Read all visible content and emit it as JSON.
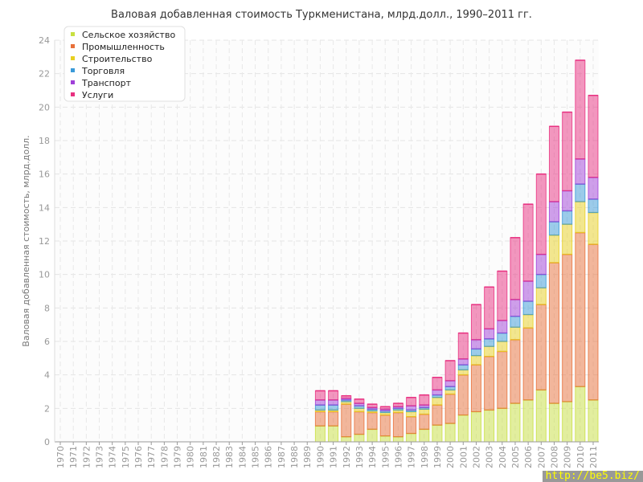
{
  "chart_data": {
    "type": "bar",
    "stacked": true,
    "title": "Валовая добавленная стоимость Туркменистана, млрд.долл., 1990–2011 гг.",
    "xlabel": "",
    "ylabel": "Валовая добавленная стоимость, млрд.долл.",
    "ylim": [
      0,
      24
    ],
    "yticks": [
      0,
      2,
      4,
      6,
      8,
      10,
      12,
      14,
      16,
      18,
      20,
      22,
      24
    ],
    "grid": true,
    "legend_position": "top-left",
    "categories": [
      "1970",
      "1971",
      "1972",
      "1973",
      "1974",
      "1975",
      "1976",
      "1977",
      "1978",
      "1979",
      "1980",
      "1981",
      "1982",
      "1983",
      "1984",
      "1985",
      "1986",
      "1987",
      "1988",
      "1989",
      "1990",
      "1991",
      "1992",
      "1993",
      "1994",
      "1995",
      "1996",
      "1997",
      "1998",
      "1999",
      "2000",
      "2001",
      "2002",
      "2003",
      "2004",
      "2005",
      "2006",
      "2007",
      "2008",
      "2009",
      "2010",
      "2011"
    ],
    "series": [
      {
        "name": "Сельское хозяйство",
        "color": "#c8e040",
        "values": [
          null,
          null,
          null,
          null,
          null,
          null,
          null,
          null,
          null,
          null,
          null,
          null,
          null,
          null,
          null,
          null,
          null,
          null,
          null,
          null,
          0.95,
          0.95,
          0.3,
          0.45,
          0.75,
          0.35,
          0.3,
          0.5,
          0.75,
          1.0,
          1.1,
          1.6,
          1.8,
          1.9,
          2.0,
          2.3,
          2.5,
          3.1,
          2.3,
          2.4,
          3.3,
          2.5
        ]
      },
      {
        "name": "Промышленность",
        "color": "#e8703a",
        "values": [
          null,
          null,
          null,
          null,
          null,
          null,
          null,
          null,
          null,
          null,
          null,
          null,
          null,
          null,
          null,
          null,
          null,
          null,
          null,
          null,
          0.85,
          0.85,
          1.95,
          1.35,
          1.0,
          1.25,
          1.45,
          1.0,
          0.9,
          1.2,
          1.75,
          2.4,
          2.8,
          3.2,
          3.4,
          3.8,
          4.3,
          5.1,
          8.4,
          8.8,
          9.2,
          9.3
        ]
      },
      {
        "name": "Строительство",
        "color": "#e8d020",
        "values": [
          null,
          null,
          null,
          null,
          null,
          null,
          null,
          null,
          null,
          null,
          null,
          null,
          null,
          null,
          null,
          null,
          null,
          null,
          null,
          null,
          0.1,
          0.1,
          0.15,
          0.2,
          0.1,
          0.15,
          0.15,
          0.3,
          0.3,
          0.45,
          0.25,
          0.3,
          0.55,
          0.6,
          0.6,
          0.75,
          0.8,
          1.0,
          1.65,
          1.8,
          1.85,
          1.9
        ]
      },
      {
        "name": "Торговля",
        "color": "#3a9ad8",
        "values": [
          null,
          null,
          null,
          null,
          null,
          null,
          null,
          null,
          null,
          null,
          null,
          null,
          null,
          null,
          null,
          null,
          null,
          null,
          null,
          null,
          0.3,
          0.3,
          0.1,
          0.15,
          0.1,
          0.1,
          0.1,
          0.1,
          0.1,
          0.15,
          0.2,
          0.3,
          0.4,
          0.45,
          0.5,
          0.65,
          0.8,
          0.8,
          0.8,
          0.8,
          1.05,
          0.8
        ]
      },
      {
        "name": "Транспорт",
        "color": "#a040d8",
        "values": [
          null,
          null,
          null,
          null,
          null,
          null,
          null,
          null,
          null,
          null,
          null,
          null,
          null,
          null,
          null,
          null,
          null,
          null,
          null,
          null,
          0.3,
          0.3,
          0.1,
          0.15,
          0.1,
          0.1,
          0.1,
          0.25,
          0.15,
          0.3,
          0.35,
          0.35,
          0.55,
          0.6,
          0.75,
          1.0,
          1.2,
          1.2,
          1.2,
          1.2,
          1.5,
          1.3
        ]
      },
      {
        "name": "Услуги",
        "color": "#e83080",
        "values": [
          null,
          null,
          null,
          null,
          null,
          null,
          null,
          null,
          null,
          null,
          null,
          null,
          null,
          null,
          null,
          null,
          null,
          null,
          null,
          null,
          0.55,
          0.55,
          0.15,
          0.25,
          0.2,
          0.15,
          0.2,
          0.5,
          0.6,
          0.75,
          1.2,
          1.55,
          2.1,
          2.5,
          2.95,
          3.7,
          4.6,
          4.8,
          4.5,
          4.7,
          5.9,
          4.9
        ]
      }
    ]
  },
  "watermark": "http://be5.biz/"
}
